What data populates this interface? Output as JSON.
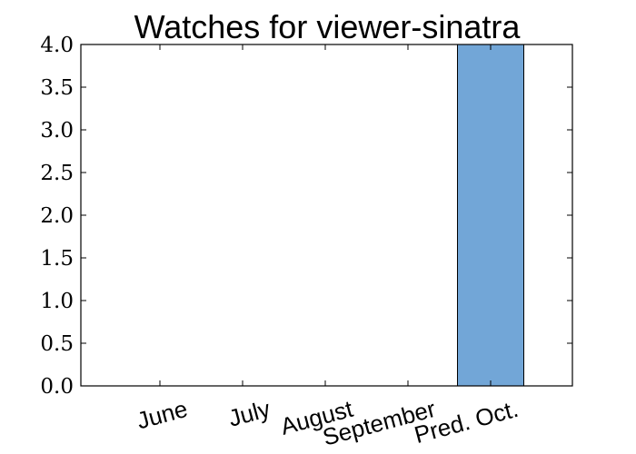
{
  "chart_data": {
    "type": "bar",
    "title": "Watches for viewer-sinatra",
    "xlabel": "",
    "ylabel": "",
    "categories": [
      "June",
      "July",
      "August",
      "September",
      "Pred. Oct."
    ],
    "values": [
      0,
      0,
      0,
      0,
      4
    ],
    "ylim": [
      0,
      4
    ],
    "yticks": [
      "0.0",
      "0.5",
      "1.0",
      "1.5",
      "2.0",
      "2.5",
      "3.0",
      "3.5",
      "4.0"
    ],
    "bar_color": "#72a6d7",
    "bar_edge_color": "#000000",
    "grid": false,
    "legend": false
  }
}
